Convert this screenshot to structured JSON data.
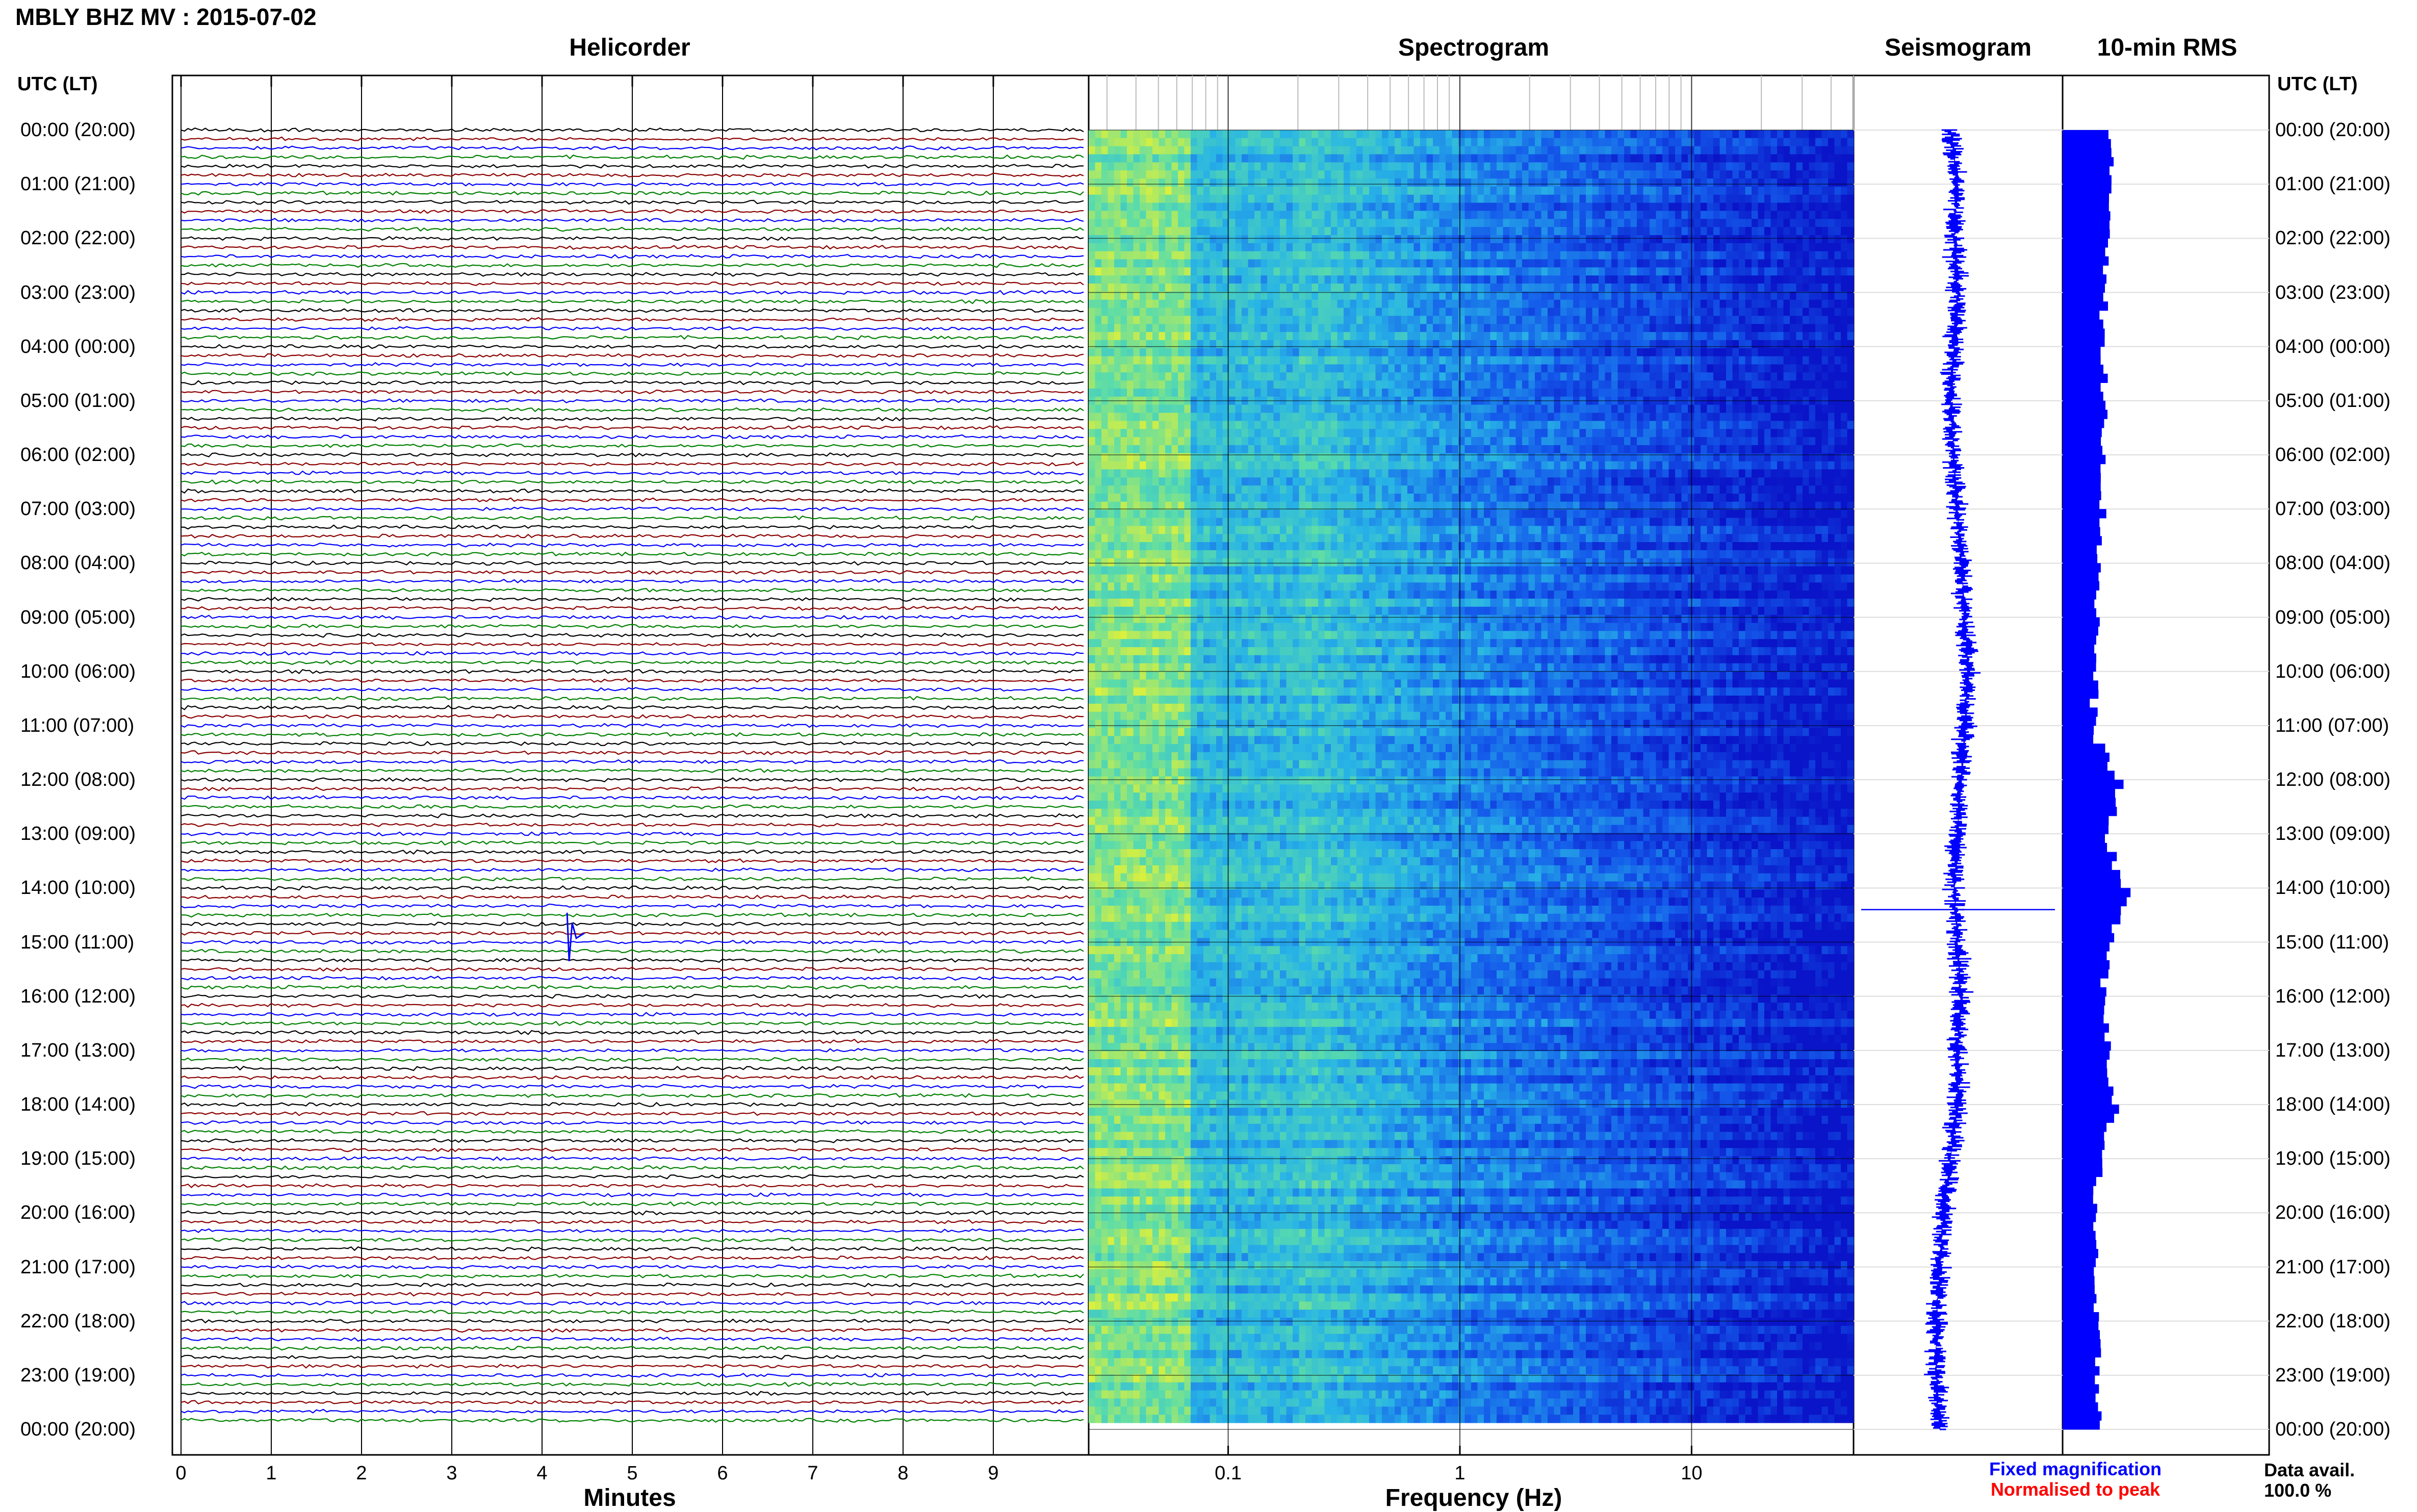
{
  "header": {
    "station_title": "MBLY BHZ MV : 2015-07-02"
  },
  "panels": {
    "helicorder": "Helicorder",
    "spectrogram": "Spectrogram",
    "seismogram": "Seismogram",
    "rms": "10-min RMS"
  },
  "time_axis": {
    "heading_left": "UTC (LT)",
    "heading_right": "UTC (LT)",
    "labels": [
      "00:00 (20:00)",
      "01:00 (21:00)",
      "02:00 (22:00)",
      "03:00 (23:00)",
      "04:00 (00:00)",
      "05:00 (01:00)",
      "06:00 (02:00)",
      "07:00 (03:00)",
      "08:00 (04:00)",
      "09:00 (05:00)",
      "10:00 (06:00)",
      "11:00 (07:00)",
      "12:00 (08:00)",
      "13:00 (09:00)",
      "14:00 (10:00)",
      "15:00 (11:00)",
      "16:00 (12:00)",
      "17:00 (13:00)",
      "18:00 (14:00)",
      "19:00 (15:00)",
      "20:00 (16:00)",
      "21:00 (17:00)",
      "22:00 (18:00)",
      "23:00 (19:00)",
      "00:00 (20:00)"
    ]
  },
  "legend": {
    "fixed": "Fixed magnification",
    "normalised": "Normalised to peak",
    "data_avail_label": "Data avail.",
    "data_avail_value": "100.0 %"
  },
  "colors": {
    "trace_cycle": [
      "#000000",
      "#8b0000",
      "#0000ff",
      "#008000"
    ],
    "seismogram": "#0000ff",
    "rms_bar": "#0000ff",
    "spectrogram_low": "#0a14c8",
    "spectrogram_mid": "#28b4e6",
    "spectrogram_high": "#dcf03c"
  },
  "chart_data": [
    {
      "type": "line",
      "title": "Helicorder",
      "xlabel": "Minutes",
      "x_ticks": [
        "0",
        "1",
        "2",
        "3",
        "4",
        "5",
        "6",
        "7",
        "8",
        "9"
      ],
      "xlim": [
        0,
        10
      ],
      "rows_per_hour": 6,
      "total_rows": 144,
      "ylim_hours_utc": [
        0,
        24
      ]
    },
    {
      "type": "heatmap",
      "title": "Spectrogram",
      "xlabel": "Frequency (Hz)",
      "x_scale": "log",
      "x_ticks": [
        "0.1",
        "1",
        "10"
      ],
      "x_tick_values": [
        0.1,
        1,
        10
      ],
      "xlim": [
        0.025,
        50
      ],
      "ylim_hours_utc": [
        0,
        24
      ]
    },
    {
      "type": "line",
      "title": "Seismogram",
      "ylim_hours_utc": [
        0,
        24
      ],
      "amplitude_profile": [
        0.0,
        0.1,
        0.05,
        0.1,
        0.05,
        0.0,
        0.05,
        0.1,
        0.15,
        0.2,
        0.25,
        0.2,
        0.15,
        0.1,
        0.05,
        0.1,
        0.15,
        0.1,
        0.1,
        0.0,
        -0.1,
        -0.15,
        -0.2,
        -0.2,
        -0.15
      ]
    },
    {
      "type": "bar",
      "title": "10-min RMS",
      "ylim_hours_utc": [
        0,
        24
      ],
      "hourly_rms_rel": [
        0.58,
        0.64,
        0.62,
        0.55,
        0.5,
        0.58,
        0.55,
        0.52,
        0.48,
        0.45,
        0.42,
        0.4,
        0.75,
        0.55,
        0.85,
        0.62,
        0.5,
        0.62,
        0.68,
        0.48,
        0.42,
        0.4,
        0.44,
        0.48,
        0.5
      ]
    }
  ]
}
